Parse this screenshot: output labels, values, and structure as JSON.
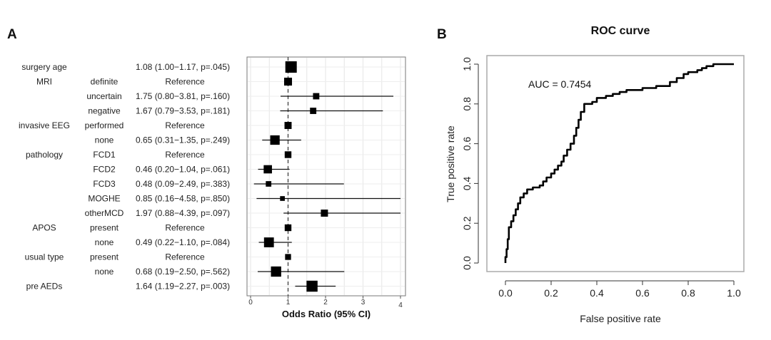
{
  "panels": {
    "a": "A",
    "b": "B"
  },
  "chart_data": [
    {
      "type": "forest",
      "xlabel": "Odds Ratio (95% CI)",
      "xlim": [
        0,
        4
      ],
      "xticks": [
        "0",
        "1",
        "2",
        "3",
        "4"
      ],
      "reference_line": 1,
      "rows": [
        {
          "variable": "surgery age",
          "level": "",
          "text": "1.08 (1.00−1.17, p=.045)",
          "or": 1.08,
          "lo": 1.0,
          "hi": 1.17
        },
        {
          "variable": "MRI",
          "level": "definite",
          "text": "Reference",
          "or": 1,
          "lo": null,
          "hi": null
        },
        {
          "variable": "",
          "level": "uncertain",
          "text": "1.75 (0.80−3.81, p=.160)",
          "or": 1.75,
          "lo": 0.8,
          "hi": 3.81
        },
        {
          "variable": "",
          "level": "negative",
          "text": "1.67 (0.79−3.53, p=.181)",
          "or": 1.67,
          "lo": 0.79,
          "hi": 3.53
        },
        {
          "variable": "invasive EEG",
          "level": "performed",
          "text": "Reference",
          "or": 1,
          "lo": null,
          "hi": null
        },
        {
          "variable": "",
          "level": "none",
          "text": "0.65 (0.31−1.35, p=.249)",
          "or": 0.65,
          "lo": 0.31,
          "hi": 1.35
        },
        {
          "variable": "pathology",
          "level": "FCD1",
          "text": "Reference",
          "or": 1,
          "lo": null,
          "hi": null
        },
        {
          "variable": "",
          "level": "FCD2",
          "text": "0.46 (0.20−1.04, p=.061)",
          "or": 0.46,
          "lo": 0.2,
          "hi": 1.04
        },
        {
          "variable": "",
          "level": "FCD3",
          "text": "0.48 (0.09−2.49, p=.383)",
          "or": 0.48,
          "lo": 0.09,
          "hi": 2.49
        },
        {
          "variable": "",
          "level": "MOGHE",
          "text": "0.85 (0.16−4.58, p=.850)",
          "or": 0.85,
          "lo": 0.16,
          "hi": 4.58
        },
        {
          "variable": "",
          "level": "otherMCD",
          "text": "1.97 (0.88−4.39, p=.097)",
          "or": 1.97,
          "lo": 0.88,
          "hi": 4.39
        },
        {
          "variable": "APOS",
          "level": "present",
          "text": "Reference",
          "or": 1,
          "lo": null,
          "hi": null
        },
        {
          "variable": "",
          "level": "none",
          "text": "0.49 (0.22−1.10, p=.084)",
          "or": 0.49,
          "lo": 0.22,
          "hi": 1.1
        },
        {
          "variable": "usual type",
          "level": "present",
          "text": "Reference",
          "or": 1,
          "lo": null,
          "hi": null
        },
        {
          "variable": "",
          "level": "none",
          "text": "0.68 (0.19−2.50, p=.562)",
          "or": 0.68,
          "lo": 0.19,
          "hi": 2.5
        },
        {
          "variable": "pre AEDs",
          "level": "",
          "text": "1.64 (1.19−2.27, p=.003)",
          "or": 1.64,
          "lo": 1.19,
          "hi": 2.27
        }
      ],
      "marker_weight": [
        1.0,
        0.55,
        0.35,
        0.35,
        0.45,
        0.75,
        0.4,
        0.6,
        0.25,
        0.15,
        0.45,
        0.4,
        0.8,
        0.3,
        0.85,
        0.95
      ]
    },
    {
      "type": "line",
      "title": "ROC curve",
      "xlabel": "False positive rate",
      "ylabel": "True positive rate",
      "xlim": [
        0,
        1
      ],
      "ylim": [
        0,
        1
      ],
      "xticks": [
        "0.0",
        "0.2",
        "0.4",
        "0.6",
        "0.8",
        "1.0"
      ],
      "yticks": [
        "0.0",
        "0.2",
        "0.4",
        "0.6",
        "0.8",
        "1.0"
      ],
      "annotation": "AUC = 0.7454",
      "x": [
        0,
        0,
        0.005,
        0.005,
        0.01,
        0.01,
        0.015,
        0.015,
        0.025,
        0.025,
        0.035,
        0.035,
        0.045,
        0.045,
        0.055,
        0.055,
        0.065,
        0.065,
        0.08,
        0.08,
        0.095,
        0.095,
        0.12,
        0.12,
        0.15,
        0.15,
        0.165,
        0.165,
        0.18,
        0.18,
        0.2,
        0.2,
        0.215,
        0.215,
        0.23,
        0.23,
        0.245,
        0.245,
        0.255,
        0.255,
        0.27,
        0.27,
        0.285,
        0.285,
        0.3,
        0.3,
        0.31,
        0.31,
        0.32,
        0.32,
        0.33,
        0.33,
        0.345,
        0.345,
        0.38,
        0.38,
        0.4,
        0.4,
        0.44,
        0.44,
        0.47,
        0.47,
        0.5,
        0.5,
        0.53,
        0.53,
        0.6,
        0.6,
        0.66,
        0.66,
        0.72,
        0.72,
        0.75,
        0.75,
        0.78,
        0.78,
        0.8,
        0.8,
        0.84,
        0.84,
        0.86,
        0.86,
        0.88,
        0.88,
        0.91,
        0.91,
        1.0
      ],
      "y": [
        0,
        0.03,
        0.03,
        0.07,
        0.07,
        0.12,
        0.12,
        0.18,
        0.18,
        0.21,
        0.21,
        0.24,
        0.24,
        0.27,
        0.27,
        0.3,
        0.3,
        0.33,
        0.33,
        0.35,
        0.35,
        0.37,
        0.37,
        0.38,
        0.38,
        0.39,
        0.39,
        0.41,
        0.41,
        0.43,
        0.43,
        0.45,
        0.45,
        0.47,
        0.47,
        0.49,
        0.49,
        0.51,
        0.51,
        0.54,
        0.54,
        0.57,
        0.57,
        0.6,
        0.6,
        0.64,
        0.64,
        0.68,
        0.68,
        0.72,
        0.72,
        0.76,
        0.76,
        0.8,
        0.8,
        0.81,
        0.81,
        0.83,
        0.83,
        0.84,
        0.84,
        0.85,
        0.85,
        0.86,
        0.86,
        0.87,
        0.87,
        0.88,
        0.88,
        0.89,
        0.89,
        0.91,
        0.91,
        0.93,
        0.93,
        0.95,
        0.95,
        0.96,
        0.96,
        0.97,
        0.97,
        0.98,
        0.98,
        0.99,
        0.99,
        1.0,
        1.0
      ]
    }
  ]
}
